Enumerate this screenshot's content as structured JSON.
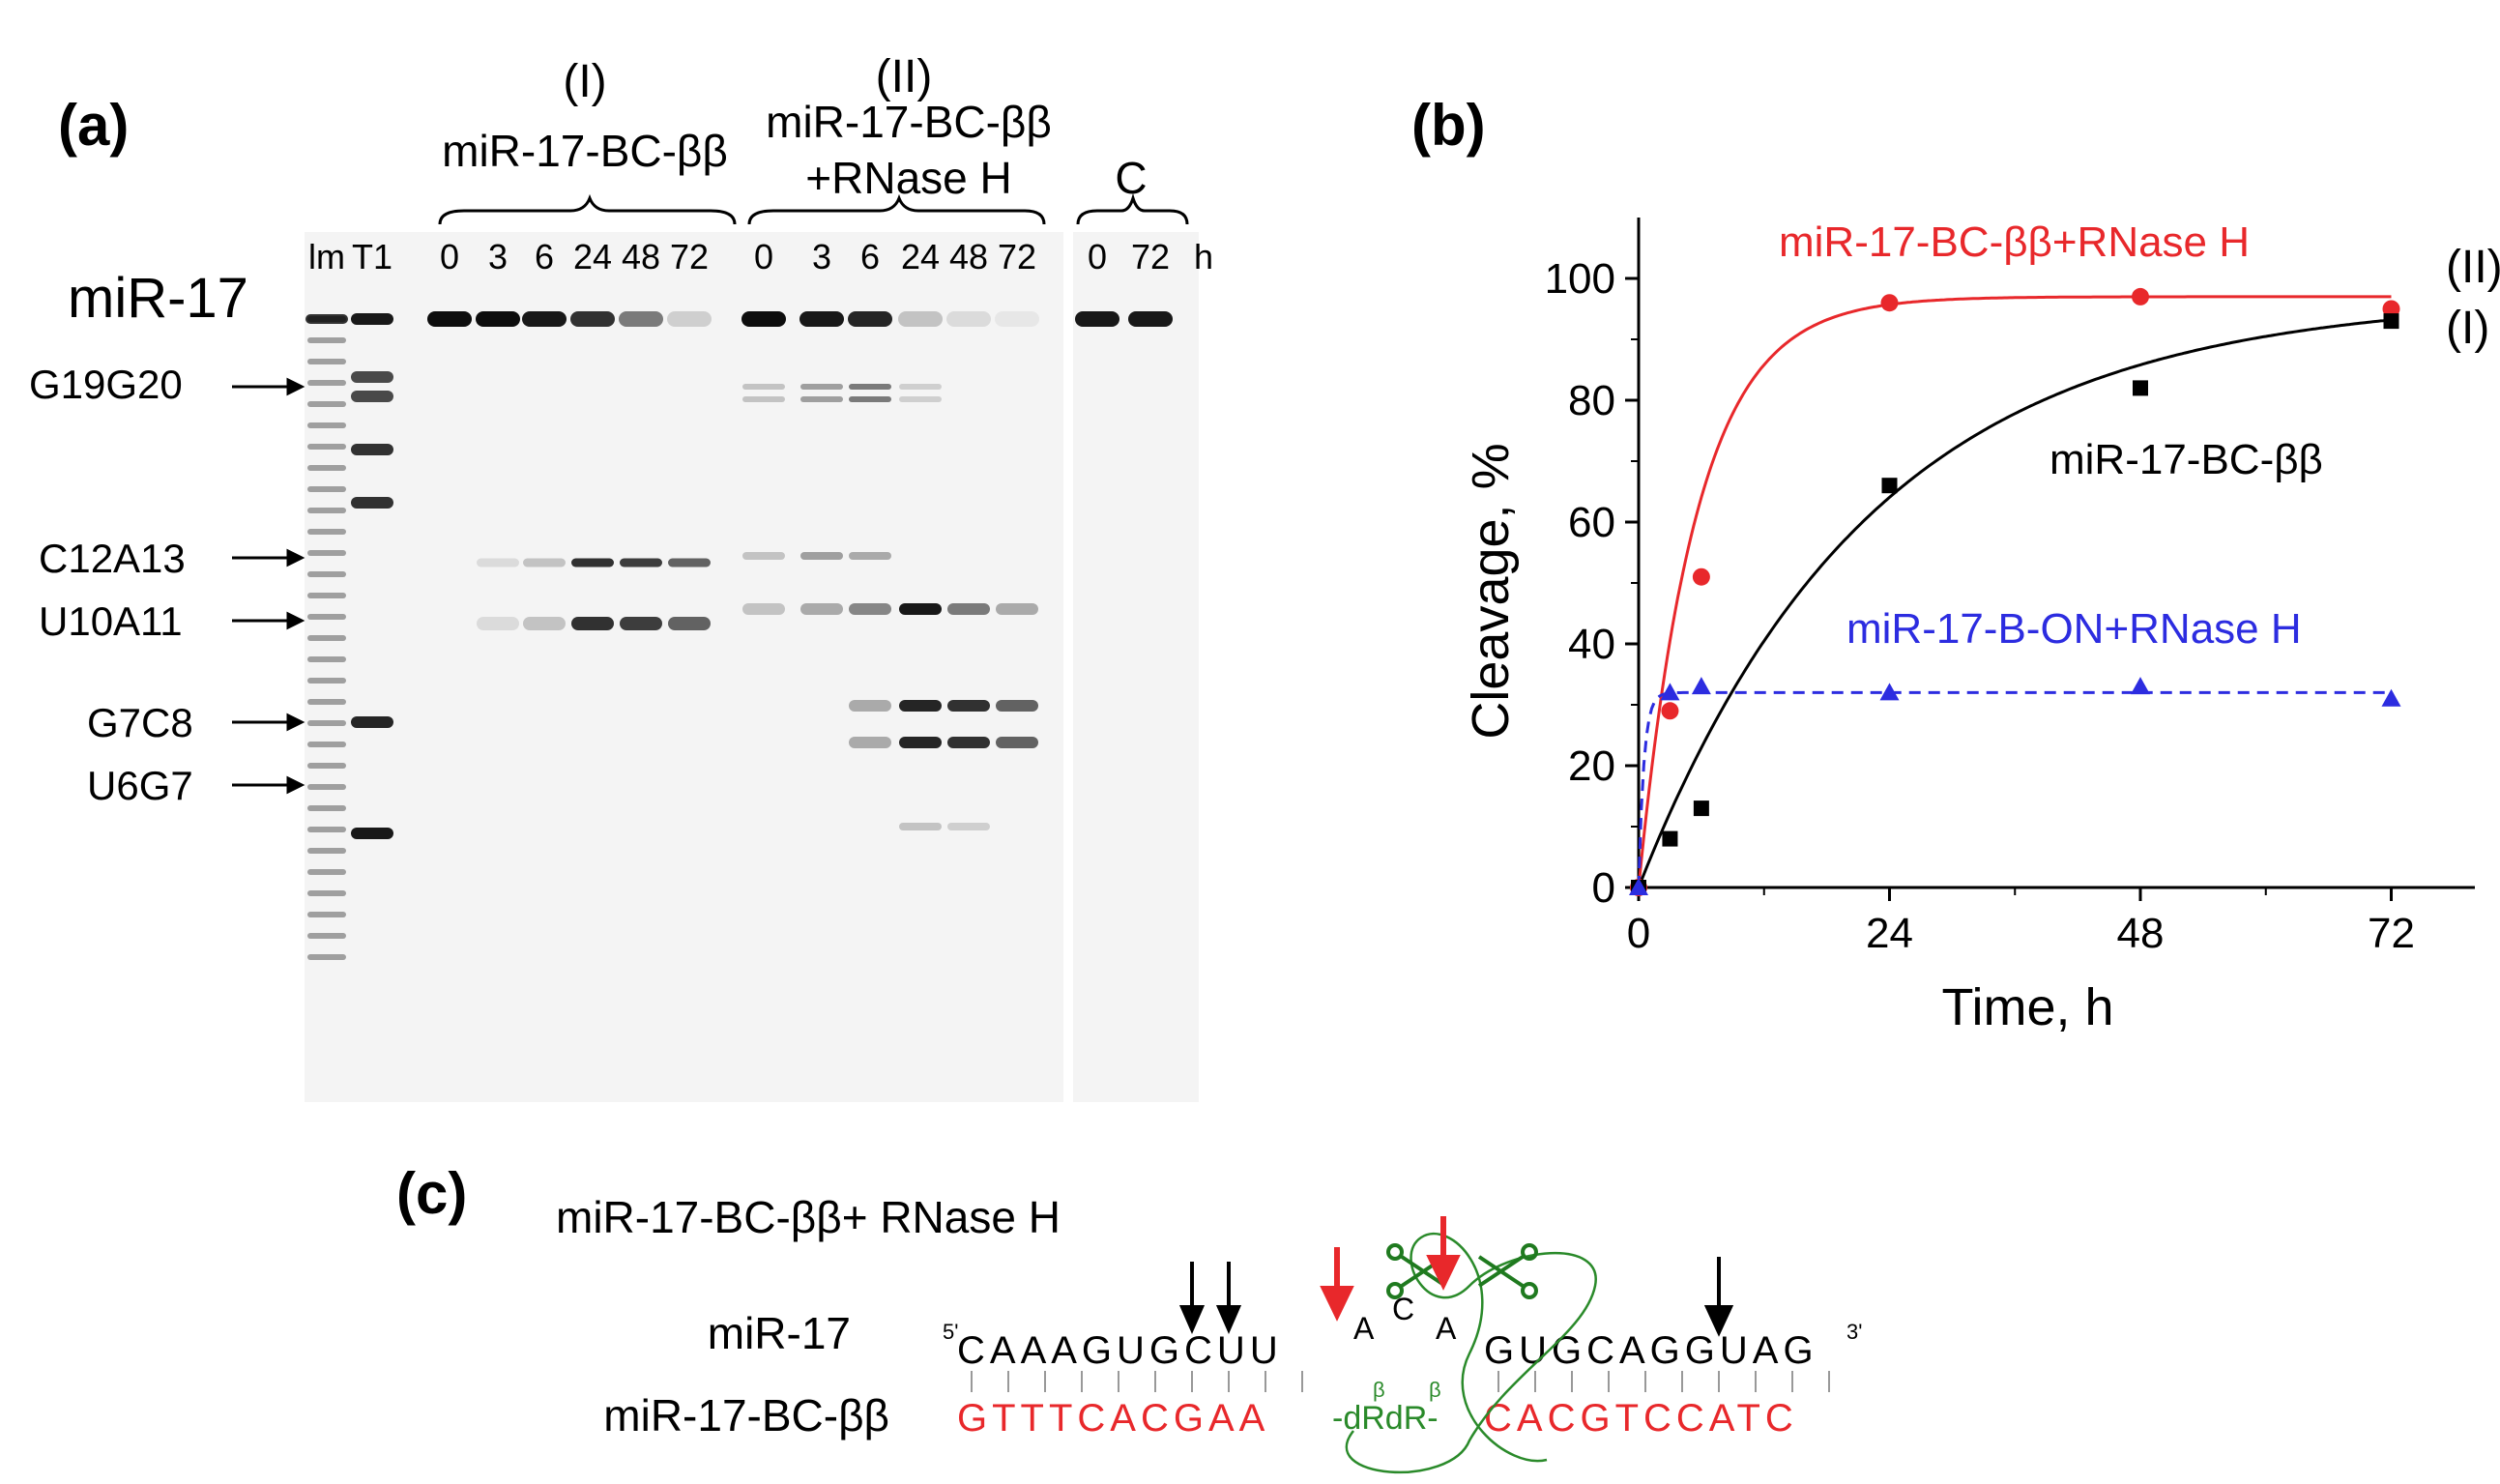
{
  "panel_a": {
    "label": "(a)",
    "group1": {
      "roman": "(I)",
      "name": "miR-17-BC-ββ"
    },
    "group2": {
      "roman": "(II)",
      "name": "miR-17-BC-ββ",
      "name2": "+RNase H"
    },
    "group3": {
      "name": "C"
    },
    "lanes": [
      "lm",
      "T1",
      "0",
      "3",
      "6",
      "24",
      "48",
      "72",
      "0",
      "3",
      "6",
      "24",
      "48",
      "72",
      "0",
      "72",
      "h"
    ],
    "band_labels": [
      {
        "text": "miR-17"
      },
      {
        "text": "G19G20"
      },
      {
        "text": "C12A13"
      },
      {
        "text": "U10A11"
      },
      {
        "text": "G7C8"
      },
      {
        "text": "U6G7"
      }
    ]
  },
  "panel_b": {
    "label": "(b)"
  },
  "panel_c": {
    "label": "(c)",
    "title": "miR-17-BC-ββ+ RNase H",
    "row1_label": "miR-17",
    "row2_label": "miR-17-BC-ββ",
    "top_seq_5": "5'",
    "top_seq_a": "CAAAGUGCUU",
    "top_seq_bulge": [
      "A",
      "C",
      "A"
    ],
    "top_seq_b": "GUGCAGGUAG",
    "top_seq_3": "3'",
    "bottom_seq_a": "GTTTCACGAA",
    "bottom_link": "-dRdR-",
    "bottom_beta1": "β",
    "bottom_beta2": "β",
    "bottom_seq_b": "CACGTCCATC"
  },
  "chart_data": {
    "type": "scatter",
    "title": "",
    "xlabel": "Time, h",
    "ylabel": "Cleavage, %",
    "xlim": [
      0,
      80
    ],
    "ylim": [
      0,
      110
    ],
    "xticks": [
      0,
      24,
      48,
      72
    ],
    "yticks": [
      0,
      20,
      40,
      60,
      80,
      100
    ],
    "series": [
      {
        "name": "miR-17-BC-ββ+RNase H",
        "tag": "(II)",
        "color": "#e8282b",
        "marker": "circle",
        "line": "solid",
        "x": [
          0,
          3,
          6,
          24,
          48,
          72
        ],
        "y": [
          0,
          29,
          51,
          96,
          97,
          95
        ],
        "fit": {
          "plateau": 97,
          "k": 0.18
        }
      },
      {
        "name": "miR-17-BC-ββ",
        "tag": "(I)",
        "color": "#000000",
        "marker": "square",
        "line": "solid",
        "x": [
          0,
          3,
          6,
          24,
          48,
          72
        ],
        "y": [
          0,
          8,
          13,
          66,
          82,
          93
        ],
        "fit": {
          "plateau": 97,
          "k": 0.045
        }
      },
      {
        "name": "miR-17-B-ON+RNase H",
        "tag": "",
        "color": "#2c2ce0",
        "marker": "triangle",
        "line": "dashed",
        "x": [
          0,
          3,
          6,
          24,
          48,
          72
        ],
        "y": [
          0,
          32,
          33,
          32,
          33,
          31
        ],
        "fit": {
          "plateau": 32,
          "k": 2.0
        }
      }
    ]
  }
}
